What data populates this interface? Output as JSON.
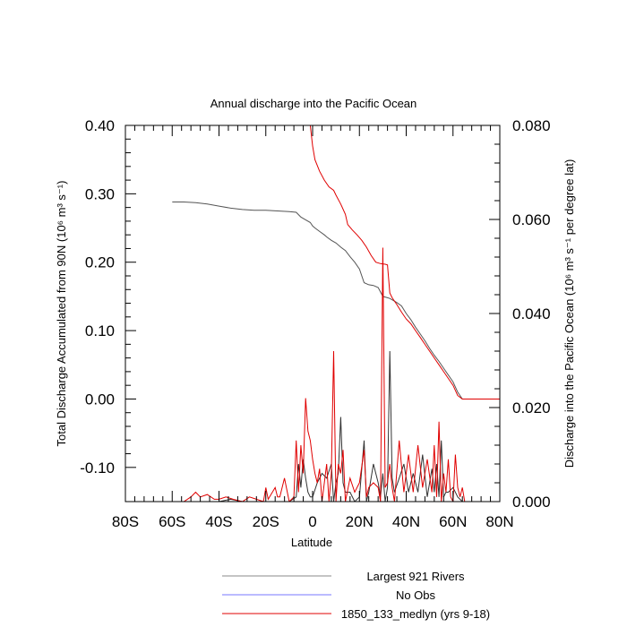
{
  "chart_data": {
    "type": "line",
    "title": "Annual discharge into the Pacific Ocean",
    "xlabel": "Latitude",
    "ylabel_left": "Total Discharge Accumulated from 90N (10⁶ m³ s⁻¹)",
    "ylabel_right": "Discharge into the Pacific Ocean (10⁶ m³ s⁻¹ per degree lat)",
    "xlim": [
      -80,
      80
    ],
    "ylim_left": [
      -0.15,
      0.4
    ],
    "ylim_right": [
      0.0,
      0.08
    ],
    "x_ticks": [
      -80,
      -60,
      -40,
      -20,
      0,
      20,
      40,
      60,
      80
    ],
    "x_tick_labels": [
      "80S",
      "60S",
      "40S",
      "20S",
      "0",
      "20N",
      "40N",
      "60N",
      "80N"
    ],
    "y_left_ticks": [
      -0.1,
      0.0,
      0.1,
      0.2,
      0.3,
      0.4
    ],
    "y_left_tick_labels": [
      "-0.10",
      "0.00",
      "0.10",
      "0.20",
      "0.30",
      "0.40"
    ],
    "y_right_ticks": [
      0.0,
      0.02,
      0.04,
      0.06,
      0.08
    ],
    "y_right_tick_labels": [
      "0.000",
      "0.020",
      "0.040",
      "0.060",
      "0.080"
    ],
    "grid": false,
    "legend_position": "bottom",
    "series": [
      {
        "name": "Largest 921 Rivers",
        "color": "#555555",
        "axis": "left",
        "x": [
          -60,
          -55,
          -50,
          -45,
          -40,
          -35,
          -30,
          -25,
          -20,
          -15,
          -10,
          -7,
          -5,
          -3,
          -1,
          0,
          1,
          3,
          5,
          6,
          8,
          10,
          12,
          14,
          16,
          18,
          20,
          22,
          24,
          26,
          28,
          30,
          32,
          33,
          34,
          36,
          38,
          40,
          42,
          44,
          46,
          48,
          50,
          52,
          54,
          56,
          58,
          60,
          62,
          64,
          66,
          70,
          75,
          80
        ],
        "values": [
          0.288,
          0.288,
          0.287,
          0.285,
          0.282,
          0.279,
          0.277,
          0.276,
          0.276,
          0.275,
          0.274,
          0.273,
          0.266,
          0.262,
          0.258,
          0.253,
          0.25,
          0.245,
          0.24,
          0.237,
          0.232,
          0.228,
          0.222,
          0.217,
          0.208,
          0.2,
          0.19,
          0.17,
          0.167,
          0.166,
          0.163,
          0.15,
          0.148,
          0.147,
          0.145,
          0.141,
          0.136,
          0.125,
          0.116,
          0.105,
          0.095,
          0.085,
          0.074,
          0.064,
          0.055,
          0.045,
          0.035,
          0.025,
          0.01,
          0.0,
          0.0,
          0.0,
          0.0,
          0.0
        ]
      },
      {
        "name": "No Obs",
        "color": "#7777ff",
        "axis": "left",
        "x": [],
        "values": []
      },
      {
        "name": "1850_133_medlyn (yrs 9-18)",
        "color": "#e00000",
        "axis": "left",
        "x": [
          -1,
          0,
          1,
          3,
          5,
          7,
          9,
          10,
          12,
          14,
          15,
          17,
          19,
          21,
          23,
          25,
          27,
          29,
          31,
          32,
          33,
          34,
          36,
          38,
          40,
          42,
          44,
          46,
          48,
          50,
          52,
          54,
          56,
          58,
          60,
          62,
          64,
          66,
          70,
          75,
          80
        ],
        "values": [
          0.4,
          0.37,
          0.35,
          0.333,
          0.32,
          0.31,
          0.305,
          0.298,
          0.285,
          0.27,
          0.255,
          0.247,
          0.24,
          0.232,
          0.222,
          0.21,
          0.2,
          0.198,
          0.197,
          0.196,
          0.155,
          0.148,
          0.138,
          0.127,
          0.117,
          0.11,
          0.1,
          0.09,
          0.08,
          0.07,
          0.06,
          0.05,
          0.04,
          0.03,
          0.02,
          0.005,
          0.0,
          0.0,
          0.0,
          0.0,
          0.0
        ]
      },
      {
        "name": "Largest 921 Rivers (per degree)",
        "color": "#333333",
        "axis": "right",
        "x": [
          -60,
          -40,
          -35,
          -30,
          -20,
          -15,
          -10,
          -7,
          -6,
          -5,
          -4,
          -3,
          -2,
          -1,
          0,
          2,
          4,
          6,
          8,
          9,
          10,
          11,
          12,
          13,
          14,
          16,
          18,
          20,
          22,
          23,
          24,
          26,
          28,
          29,
          30,
          31,
          32,
          33,
          34,
          35,
          37,
          39,
          41,
          43,
          45,
          47,
          49,
          51,
          52,
          53,
          54,
          55,
          56,
          57,
          58,
          60,
          62,
          64,
          66,
          70,
          80
        ],
        "values": [
          0.0,
          0.0,
          0.0005,
          0.0,
          0.0,
          0.0,
          0.0,
          0.001,
          0.008,
          0.003,
          0.009,
          0.005,
          0.002,
          0.001,
          0.001,
          0.004,
          0.006,
          0.005,
          0.008,
          0.0,
          0.004,
          0.006,
          0.018,
          0.004,
          0.002,
          0.002,
          0.0,
          0.001,
          0.013,
          0.0,
          0.002,
          0.008,
          0.004,
          0.001,
          0.006,
          0.0,
          0.003,
          0.032,
          0.005,
          0.002,
          0.005,
          0.008,
          0.002,
          0.006,
          0.002,
          0.01,
          0.001,
          0.007,
          0.002,
          0.008,
          0.001,
          0.013,
          0.001,
          0.002,
          0.002,
          0.003,
          0.001,
          0.0,
          0.0,
          0.0,
          0.0
        ]
      },
      {
        "name": "1850_133_medlyn (yrs 9-18) (per degree)",
        "color": "#e00000",
        "axis": "right",
        "x": [
          -80,
          -60,
          -55,
          -52,
          -50,
          -48,
          -45,
          -42,
          -40,
          -37,
          -34,
          -30,
          -27,
          -24,
          -21,
          -20,
          -19,
          -16,
          -15,
          -14,
          -12,
          -10,
          -8,
          -7,
          -6,
          -5,
          -4,
          -3,
          -2,
          -1,
          0,
          1,
          2,
          3,
          4,
          6,
          7,
          8,
          9,
          10,
          11,
          12,
          13,
          14,
          16,
          18,
          20,
          22,
          23,
          24,
          26,
          28,
          29,
          30,
          31,
          32,
          33,
          34,
          35,
          37,
          39,
          41,
          43,
          45,
          47,
          49,
          51,
          52,
          53,
          54,
          55,
          56,
          57,
          58,
          59,
          60,
          61,
          62,
          63,
          64,
          65,
          66,
          68,
          70,
          80
        ],
        "values": [
          0.0,
          0.0,
          0.0,
          0.001,
          0.002,
          0.001,
          0.0015,
          0.0005,
          0.0005,
          0.001,
          0.0005,
          0.0,
          0.001,
          0.0005,
          0.0,
          0.003,
          0.0005,
          0.003,
          0.001,
          0.001,
          0.005,
          0.0,
          0.001,
          0.013,
          0.002,
          0.012,
          0.006,
          0.022,
          0.015,
          0.013,
          0.009,
          0.006,
          0.004,
          0.007,
          0.0,
          0.008,
          0.0,
          0.006,
          0.032,
          0.0,
          0.008,
          0.006,
          0.011,
          0.0,
          0.005,
          0.002,
          0.004,
          0.011,
          0.001,
          0.003,
          0.004,
          0.003,
          0.0,
          0.054,
          0.003,
          0.004,
          0.008,
          0.003,
          0.0,
          0.013,
          0.002,
          0.01,
          0.002,
          0.012,
          0.003,
          0.009,
          0.002,
          0.012,
          0.001,
          0.017,
          0.0,
          0.006,
          0.002,
          0.009,
          0.001,
          0.0,
          0.01,
          0.003,
          0.001,
          0.003,
          0.0,
          0.0,
          0.0,
          0.0,
          0.0
        ]
      }
    ]
  },
  "legend": {
    "items": [
      {
        "label": "Largest 921 Rivers",
        "color": "#888888"
      },
      {
        "label": "No Obs",
        "color": "#7777ff"
      },
      {
        "label": "1850_133_medlyn (yrs 9-18)",
        "color": "#e00000"
      }
    ]
  }
}
